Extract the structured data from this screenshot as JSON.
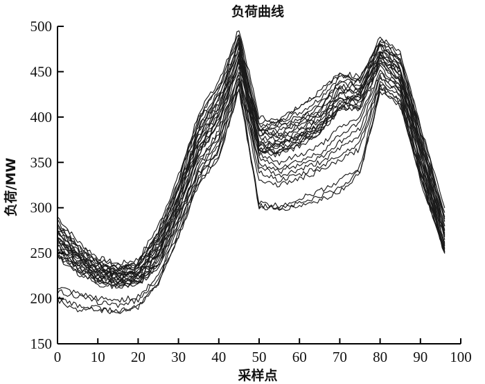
{
  "chart_data": {
    "type": "line",
    "title": "负荷曲线",
    "xlabel": "采样点",
    "ylabel": "负荷/MW",
    "xlim": [
      0,
      100
    ],
    "ylim": [
      150,
      500
    ],
    "xticks": [
      0,
      10,
      20,
      30,
      40,
      50,
      60,
      70,
      80,
      90,
      100
    ],
    "yticks": [
      150,
      200,
      250,
      300,
      350,
      400,
      450,
      500
    ],
    "grid": false,
    "legend": "none",
    "line_color": "#1a1a1a",
    "x": [
      0,
      5,
      10,
      15,
      20,
      25,
      30,
      35,
      40,
      45,
      50,
      55,
      60,
      65,
      70,
      75,
      80,
      85,
      90,
      96
    ],
    "series": [
      {
        "values": [
          290,
          263,
          245,
          238,
          243,
          280,
          335,
          400,
          432,
          498,
          400,
          395,
          405,
          420,
          445,
          440,
          488,
          470,
          390,
          300
        ]
      },
      {
        "values": [
          285,
          260,
          242,
          236,
          240,
          275,
          330,
          395,
          428,
          490,
          395,
          392,
          400,
          415,
          440,
          438,
          485,
          465,
          385,
          290
        ]
      },
      {
        "values": [
          280,
          258,
          240,
          235,
          238,
          270,
          325,
          390,
          425,
          485,
          390,
          388,
          398,
          410,
          438,
          435,
          482,
          462,
          380,
          285
        ]
      },
      {
        "values": [
          278,
          255,
          238,
          233,
          236,
          268,
          320,
          385,
          420,
          480,
          388,
          385,
          395,
          408,
          435,
          432,
          480,
          460,
          378,
          280
        ]
      },
      {
        "values": [
          275,
          252,
          236,
          232,
          235,
          265,
          318,
          380,
          415,
          478,
          385,
          382,
          392,
          405,
          432,
          430,
          478,
          455,
          372,
          275
        ]
      },
      {
        "values": [
          273,
          250,
          235,
          230,
          233,
          262,
          315,
          378,
          412,
          475,
          383,
          380,
          390,
          402,
          430,
          428,
          475,
          452,
          370,
          272
        ]
      },
      {
        "values": [
          270,
          248,
          233,
          228,
          232,
          260,
          312,
          375,
          410,
          472,
          380,
          378,
          388,
          400,
          428,
          425,
          472,
          450,
          368,
          270
        ]
      },
      {
        "values": [
          268,
          246,
          232,
          227,
          230,
          258,
          310,
          372,
          408,
          470,
          378,
          375,
          385,
          398,
          425,
          422,
          470,
          448,
          365,
          268
        ]
      },
      {
        "values": [
          265,
          244,
          230,
          225,
          228,
          255,
          308,
          370,
          405,
          468,
          375,
          372,
          382,
          395,
          422,
          420,
          468,
          445,
          362,
          265
        ]
      },
      {
        "values": [
          263,
          242,
          228,
          223,
          226,
          252,
          305,
          368,
          402,
          465,
          372,
          370,
          380,
          392,
          420,
          418,
          465,
          442,
          360,
          262
        ]
      },
      {
        "values": [
          260,
          240,
          226,
          222,
          225,
          250,
          302,
          365,
          400,
          462,
          370,
          368,
          378,
          390,
          418,
          415,
          462,
          440,
          358,
          260
        ]
      },
      {
        "values": [
          258,
          238,
          225,
          220,
          223,
          248,
          300,
          362,
          398,
          460,
          368,
          365,
          375,
          388,
          415,
          412,
          460,
          438,
          355,
          258
        ]
      },
      {
        "values": [
          255,
          236,
          223,
          218,
          222,
          245,
          298,
          360,
          395,
          458,
          365,
          362,
          372,
          385,
          412,
          410,
          458,
          435,
          352,
          255
        ]
      },
      {
        "values": [
          252,
          234,
          221,
          217,
          220,
          242,
          295,
          358,
          392,
          455,
          362,
          360,
          370,
          382,
          410,
          408,
          455,
          432,
          350,
          252
        ]
      },
      {
        "values": [
          282,
          256,
          239,
          232,
          237,
          272,
          328,
          405,
          440,
          492,
          385,
          398,
          412,
          428,
          448,
          445,
          484,
          468,
          388,
          295
        ]
      },
      {
        "values": [
          276,
          251,
          235,
          229,
          234,
          266,
          322,
          398,
          435,
          486,
          380,
          395,
          410,
          425,
          446,
          442,
          480,
          464,
          384,
          288
        ]
      },
      {
        "values": [
          262,
          244,
          229,
          224,
          227,
          254,
          310,
          384,
          418,
          476,
          362,
          358,
          368,
          382,
          408,
          425,
          470,
          450,
          372,
          276
        ]
      },
      {
        "values": [
          266,
          246,
          231,
          226,
          230,
          258,
          314,
          388,
          424,
          480,
          366,
          362,
          372,
          388,
          412,
          428,
          474,
          454,
          376,
          280
        ]
      },
      {
        "values": [
          268,
          247,
          231,
          226,
          228,
          250,
          300,
          360,
          395,
          462,
          365,
          370,
          378,
          390,
          410,
          412,
          465,
          445,
          360,
          270
        ]
      },
      {
        "values": [
          250,
          233,
          222,
          216,
          219,
          240,
          290,
          352,
          385,
          450,
          360,
          350,
          358,
          368,
          388,
          400,
          450,
          432,
          348,
          260
        ]
      },
      {
        "values": [
          255,
          236,
          224,
          219,
          221,
          243,
          292,
          350,
          382,
          448,
          355,
          345,
          352,
          360,
          380,
          395,
          448,
          430,
          345,
          258
        ]
      },
      {
        "values": [
          250,
          232,
          220,
          215,
          218,
          238,
          288,
          345,
          378,
          445,
          350,
          340,
          348,
          355,
          372,
          388,
          445,
          428,
          342,
          256
        ]
      },
      {
        "values": [
          248,
          230,
          218,
          213,
          216,
          236,
          285,
          342,
          375,
          442,
          345,
          335,
          342,
          350,
          365,
          380,
          442,
          425,
          340,
          254
        ]
      },
      {
        "values": [
          245,
          228,
          216,
          212,
          215,
          234,
          282,
          338,
          370,
          438,
          340,
          330,
          336,
          345,
          358,
          372,
          438,
          422,
          338,
          252
        ]
      },
      {
        "values": [
          212,
          205,
          200,
          198,
          202,
          225,
          278,
          335,
          365,
          440,
          330,
          325,
          332,
          340,
          352,
          365,
          436,
          420,
          336,
          251
        ]
      },
      {
        "values": [
          208,
          202,
          196,
          193,
          198,
          222,
          274,
          332,
          362,
          436,
          305,
          302,
          310,
          318,
          330,
          345,
          434,
          418,
          334,
          250
        ]
      },
      {
        "values": [
          200,
          192,
          190,
          186,
          190,
          218,
          270,
          328,
          358,
          432,
          302,
          300,
          305,
          312,
          322,
          340,
          430,
          415,
          332,
          250
        ]
      },
      {
        "values": [
          198,
          187,
          188,
          184,
          192,
          216,
          268,
          325,
          355,
          430,
          300,
          298,
          302,
          308,
          318,
          338,
          428,
          412,
          330,
          250
        ]
      }
    ]
  }
}
